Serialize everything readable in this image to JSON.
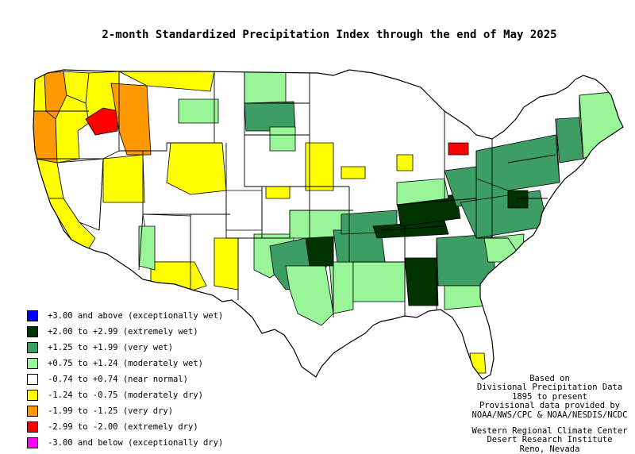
{
  "title": "2-month Standardized Precipitation Index through the end of May 2025",
  "legend": [
    {
      "color": "#0000ff",
      "label": "+3.00 and above (exceptionally wet)"
    },
    {
      "color": "#003300",
      "label": "+2.00 to +2.99 (extremely wet)"
    },
    {
      "color": "#3c9e64",
      "label": "+1.25 to +1.99 (very wet)"
    },
    {
      "color": "#98f598",
      "label": "+0.75 to +1.24 (moderately wet)"
    },
    {
      "color": "#ffffff",
      "label": "-0.74 to +0.74 (near normal)"
    },
    {
      "color": "#ffff00",
      "label": "-1.24 to -0.75 (moderately dry)"
    },
    {
      "color": "#ff9900",
      "label": "-1.99 to -1.25 (very dry)"
    },
    {
      "color": "#ff0000",
      "label": "-2.99 to -2.00 (extremely dry)"
    },
    {
      "color": "#ff00ff",
      "label": "-3.00 and below (exceptionally dry)"
    }
  ],
  "credits": {
    "data_lines": [
      "Based on",
      "Divisional Precipitation Data",
      "1895 to present",
      "Provisional data provided by",
      "NOAA/NWS/CPC & NOAA/NESDIS/NCDC"
    ],
    "org_lines": [
      "Western Regional Climate Center",
      "Desert Research Institute",
      "Reno, Nevada"
    ]
  },
  "colors": {
    "outline": "#000000",
    "water": "#ffffff"
  }
}
